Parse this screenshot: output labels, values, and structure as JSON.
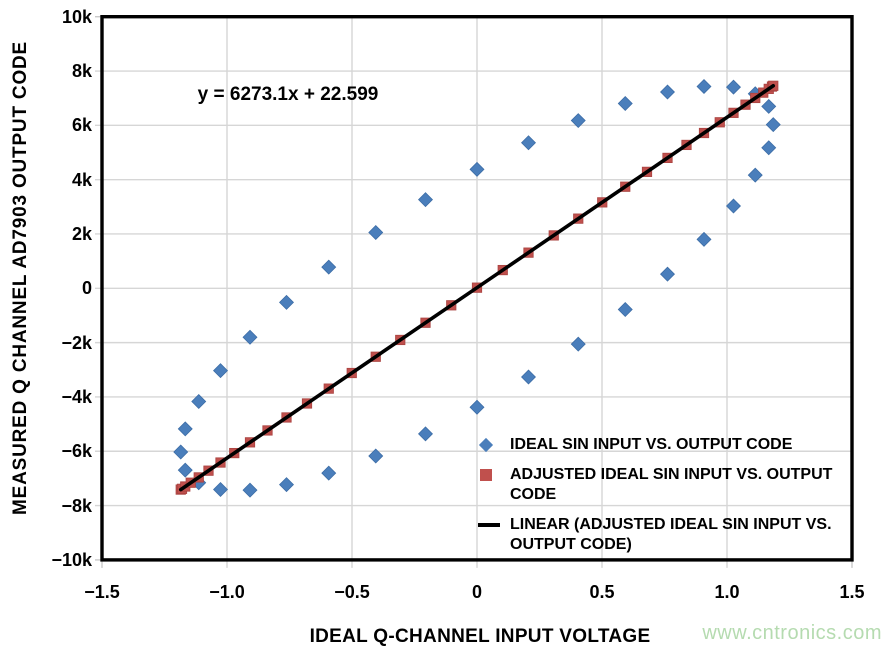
{
  "figure": {
    "equation_label": "y = 6273.1x + 22.599",
    "watermark": "www.cntronics.com"
  },
  "axes": {
    "x_title": "IDEAL Q-CHANNEL INPUT VOLTAGE",
    "y_title": "MEASURED Q CHANNEL AD7903 OUTPUT CODE",
    "x_ticks": [
      {
        "value": -1.5,
        "label": "−1.5"
      },
      {
        "value": -1.0,
        "label": "−1.0"
      },
      {
        "value": -0.5,
        "label": "−0.5"
      },
      {
        "value": 0,
        "label": "0"
      },
      {
        "value": 0.5,
        "label": "0.5"
      },
      {
        "value": 1.0,
        "label": "1.0"
      },
      {
        "value": 1.5,
        "label": "1.5"
      }
    ],
    "y_ticks": [
      {
        "value": 10000,
        "label": "10k"
      },
      {
        "value": 8000,
        "label": "8k"
      },
      {
        "value": 6000,
        "label": "6k"
      },
      {
        "value": 4000,
        "label": "4k"
      },
      {
        "value": 2000,
        "label": "2k"
      },
      {
        "value": 0,
        "label": "0"
      },
      {
        "value": -2000,
        "label": "−2k"
      },
      {
        "value": -4000,
        "label": "−4k"
      },
      {
        "value": -6000,
        "label": "−6k"
      },
      {
        "value": -8000,
        "label": "−8k"
      },
      {
        "value": -10000,
        "label": "−10k"
      }
    ]
  },
  "legend": {
    "items": [
      {
        "marker": "diamond",
        "color": "#4a7ebb",
        "label": "IDEAL SIN INPUT VS. OUTPUT CODE"
      },
      {
        "marker": "square",
        "color": "#c0504d",
        "label": "ADJUSTED IDEAL SIN INPUT VS. OUTPUT CODE"
      },
      {
        "marker": "line",
        "color": "#000000",
        "label": "LINEAR (ADJUSTED IDEAL SIN INPUT VS. OUTPUT CODE)"
      }
    ]
  },
  "colors": {
    "blue_marker": "#4a7ebb",
    "blue_marker_edge": "#3d6da6",
    "red_marker": "#c0504d",
    "red_marker_edge": "#a94340",
    "trend_line": "#000000",
    "gridline": "#d6d6d6",
    "tick": "#c9c9c9",
    "frame": "#000000",
    "watermark_green": "#b5dbb0"
  },
  "chart_data": {
    "type": "scatter",
    "title": "",
    "xlabel": "IDEAL Q-CHANNEL INPUT VOLTAGE",
    "ylabel": "MEASURED Q CHANNEL AD7903 OUTPUT CODE",
    "xlim": [
      -1.5,
      1.5
    ],
    "ylim": [
      -10000,
      10000
    ],
    "grid": true,
    "legend_position": "inside lower right",
    "annotation": "y = 6273.1x + 22.599",
    "series": [
      {
        "name": "IDEAL SIN INPUT VS. OUTPUT CODE",
        "type": "scatter",
        "marker": "diamond",
        "points": [
          [
            0.0,
            4379
          ],
          [
            0.206,
            5359
          ],
          [
            0.405,
            6176
          ],
          [
            0.593,
            6806
          ],
          [
            0.762,
            7229
          ],
          [
            0.908,
            7432
          ],
          [
            1.026,
            7409
          ],
          [
            1.113,
            7161
          ],
          [
            1.167,
            6696
          ],
          [
            1.185,
            6027
          ],
          [
            1.167,
            5175
          ],
          [
            1.113,
            4166
          ],
          [
            1.026,
            3030
          ],
          [
            0.908,
            1802
          ],
          [
            0.762,
            520
          ],
          [
            0.593,
            -779
          ],
          [
            0.405,
            -2054
          ],
          [
            0.206,
            -3266
          ],
          [
            0.0,
            -4379
          ],
          [
            -0.206,
            -5359
          ],
          [
            -0.405,
            -6176
          ],
          [
            -0.593,
            -6806
          ],
          [
            -0.762,
            -7229
          ],
          [
            -0.908,
            -7432
          ],
          [
            -1.026,
            -7409
          ],
          [
            -1.113,
            -7161
          ],
          [
            -1.167,
            -6696
          ],
          [
            -1.185,
            -6027
          ],
          [
            -1.167,
            -5175
          ],
          [
            -1.113,
            -4166
          ],
          [
            -1.026,
            -3030
          ],
          [
            -0.908,
            -1802
          ],
          [
            -0.762,
            -520
          ],
          [
            -0.593,
            779
          ],
          [
            -0.405,
            2054
          ],
          [
            -0.206,
            3266
          ]
        ]
      },
      {
        "name": "ADJUSTED IDEAL SIN INPUT VS. OUTPUT CODE",
        "type": "scatter",
        "marker": "square",
        "points": [
          [
            -1.185,
            -7411
          ],
          [
            -1.18,
            -7383
          ],
          [
            -1.167,
            -7298
          ],
          [
            -1.145,
            -7158
          ],
          [
            -1.113,
            -6963
          ],
          [
            -1.074,
            -6715
          ],
          [
            -1.026,
            -6415
          ],
          [
            -0.971,
            -6067
          ],
          [
            -0.908,
            -5672
          ],
          [
            -0.838,
            -5234
          ],
          [
            -0.762,
            -4756
          ],
          [
            -0.68,
            -4241
          ],
          [
            -0.593,
            -3694
          ],
          [
            -0.501,
            -3119
          ],
          [
            -0.405,
            -2520
          ],
          [
            -0.307,
            -1902
          ],
          [
            -0.206,
            -1268
          ],
          [
            -0.103,
            -626
          ],
          [
            0.0,
            23
          ],
          [
            0.103,
            671
          ],
          [
            0.206,
            1313
          ],
          [
            0.307,
            1947
          ],
          [
            0.405,
            2565
          ],
          [
            0.501,
            3164
          ],
          [
            0.593,
            3740
          ],
          [
            0.68,
            4287
          ],
          [
            0.762,
            4801
          ],
          [
            0.838,
            5279
          ],
          [
            0.908,
            5718
          ],
          [
            0.971,
            6112
          ],
          [
            1.026,
            6460
          ],
          [
            1.074,
            6761
          ],
          [
            1.113,
            7008
          ],
          [
            1.145,
            7204
          ],
          [
            1.167,
            7343
          ],
          [
            1.18,
            7428
          ],
          [
            1.185,
            7456
          ]
        ]
      },
      {
        "name": "LINEAR (ADJUSTED IDEAL SIN INPUT VS. OUTPUT CODE)",
        "type": "line",
        "equation": "y = 6273.1x + 22.599",
        "points": [
          [
            -1.185,
            -7411
          ],
          [
            1.185,
            7456
          ]
        ]
      }
    ]
  }
}
